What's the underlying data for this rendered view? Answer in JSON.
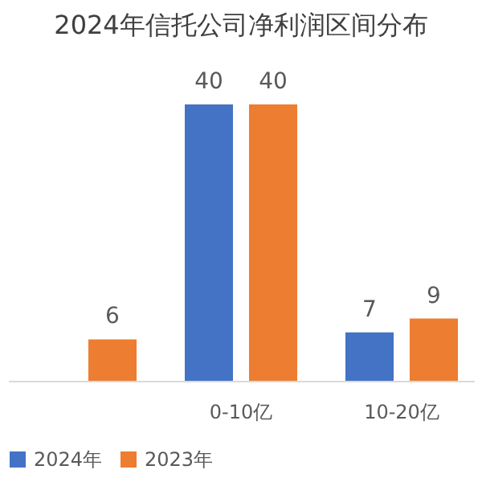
{
  "chart_data": {
    "type": "bar",
    "title": "2024年信托公司净利润区间分布",
    "categories": [
      null,
      "0-10亿",
      "10-20亿"
    ],
    "series": [
      {
        "name": "2024年",
        "color": "#4472c4",
        "values": [
          null,
          40,
          7
        ]
      },
      {
        "name": "2023年",
        "color": "#ed7d31",
        "values": [
          6,
          40,
          9
        ]
      }
    ],
    "data_labels": true,
    "legend": "bottom",
    "grid": false
  }
}
